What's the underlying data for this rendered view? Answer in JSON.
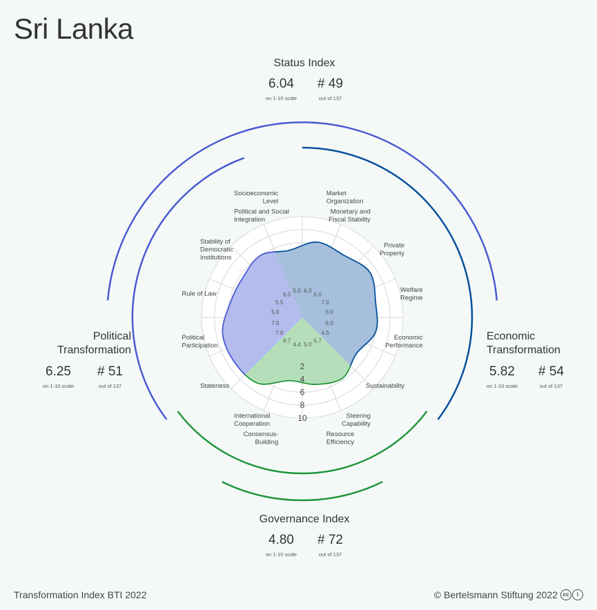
{
  "title": "Sri Lanka",
  "footer": {
    "left": "Transformation Index BTI 2022",
    "right": "© Bertelsmann Stiftung 2022"
  },
  "status": {
    "title": "Status Index",
    "score": "6.04",
    "score_note": "on 1-10 scale",
    "rank": "# 49",
    "rank_note": "out of 137"
  },
  "political": {
    "title_line1": "Political",
    "title_line2": "Transformation",
    "score": "6.25",
    "score_note": "on 1-10 scale",
    "rank": "# 51",
    "rank_note": "out of 137"
  },
  "economic": {
    "title_line1": "Economic",
    "title_line2": "Transformation",
    "score": "5.82",
    "score_note": "on 1-10 scale",
    "rank": "# 54",
    "rank_note": "out of 137"
  },
  "governance": {
    "title": "Governance Index",
    "score": "4.80",
    "score_note": "on 1-10 scale",
    "rank": "# 72",
    "rank_note": "out of 137"
  },
  "colors": {
    "political": "#4a5ad0",
    "economic": "#064f9c",
    "governance": "#21963a",
    "political_fill": "#b3bcec",
    "economic_fill": "#a5bfdc",
    "governance_fill": "#b5dfba",
    "grid": "#dddddd"
  },
  "chart_data": {
    "type": "radar",
    "scale": [
      0,
      10
    ],
    "ticks": [
      "2",
      "4",
      "6",
      "8",
      "10"
    ],
    "criteria": [
      {
        "label": "Market Organization",
        "value": 6.3,
        "group": "economic"
      },
      {
        "label": "Monetary and Fiscal Stability",
        "value": 6.0,
        "group": "economic"
      },
      {
        "label": "Private Property",
        "value": 7.0,
        "group": "economic"
      },
      {
        "label": "Welfare Regime",
        "value": 6.0,
        "group": "economic"
      },
      {
        "label": "Economic Performance",
        "value": 6.0,
        "group": "economic"
      },
      {
        "label": "Sustainability",
        "value": 4.5,
        "group": "economic"
      },
      {
        "label": "Steering Capability",
        "value": 5.7,
        "group": "governance"
      },
      {
        "label": "Resource Efficiency",
        "value": 5.0,
        "group": "governance"
      },
      {
        "label": "Consensus-Building",
        "value": 4.4,
        "group": "governance"
      },
      {
        "label": "International Cooperation",
        "value": 6.7,
        "group": "governance"
      },
      {
        "label": "Stateness",
        "value": 7.0,
        "group": "political"
      },
      {
        "label": "Political Participation",
        "value": 7.0,
        "group": "political"
      },
      {
        "label": "Rule of Law",
        "value": 5.8,
        "group": "political"
      },
      {
        "label": "Stability of Democratic Institutions",
        "value": 5.5,
        "group": "political"
      },
      {
        "label": "Political and Social Integration",
        "value": 6.0,
        "group": "political"
      },
      {
        "label": "Socioeconomic Level",
        "value": 5.0,
        "group": "economic"
      }
    ]
  }
}
